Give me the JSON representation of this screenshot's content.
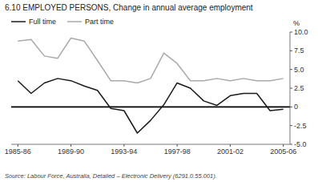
{
  "chart_data": {
    "type": "line",
    "title": "6.10   EMPLOYED PERSONS, Change in annual average employment",
    "ylabel": "%",
    "source": "Source: Labour Force, Australia, Detailed – Electronic Delivery (6291.0.55.001).",
    "categories": [
      "1985-86",
      null,
      null,
      null,
      "1989-90",
      null,
      null,
      null,
      "1993-94",
      null,
      null,
      null,
      "1997-98",
      null,
      null,
      null,
      "2001-02",
      null,
      null,
      null,
      "2005-06"
    ],
    "series": [
      {
        "name": "Full time",
        "color": "#1a1a1a",
        "values": [
          3.5,
          1.8,
          3.2,
          3.8,
          3.5,
          2.8,
          2.2,
          -0.2,
          -0.5,
          -3.5,
          -1.8,
          0.3,
          3.2,
          2.5,
          0.8,
          0.2,
          1.5,
          1.8,
          1.8,
          -0.5,
          -0.3
        ]
      },
      {
        "name": "Part time",
        "color": "#aaaaaa",
        "values": [
          8.8,
          9.0,
          6.8,
          6.5,
          9.2,
          8.8,
          6.2,
          3.5,
          3.5,
          3.2,
          3.8,
          7.2,
          5.8,
          3.5,
          3.5,
          3.8,
          3.5,
          3.8,
          3.5,
          3.5,
          3.8
        ]
      }
    ],
    "ylim": [
      -5.0,
      10.0
    ],
    "yticks": [
      {
        "value": -5.0,
        "label": "-5.0"
      },
      {
        "value": -2.5,
        "label": "-2.5"
      },
      0,
      2.5,
      {
        "value": 5.0,
        "label": "5.0"
      },
      7.5,
      {
        "value": 10.0,
        "label": "10.0"
      }
    ],
    "grid": false,
    "legend": "upper left"
  }
}
